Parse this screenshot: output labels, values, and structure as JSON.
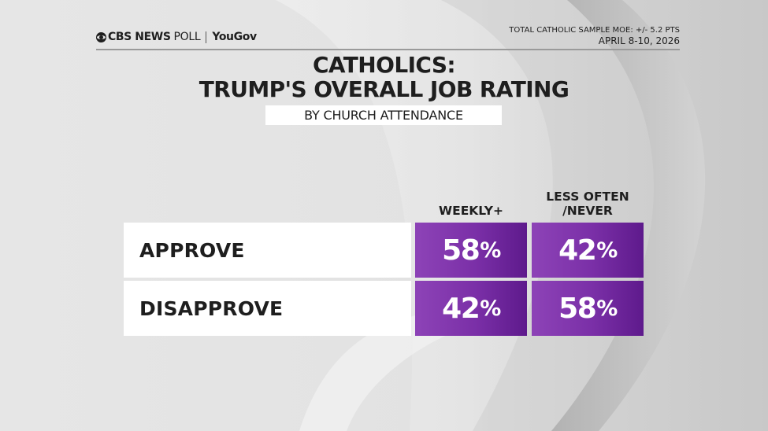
{
  "header": {
    "brand_main": "CBS NEWS",
    "brand_poll": "POLL",
    "brand_partner": "YouGov",
    "moe": "TOTAL CATHOLIC SAMPLE MOE: +/- 5.2 PTS",
    "dates": "APRIL 8-10, 2026"
  },
  "title_line1": "CATHOLICS:",
  "title_line2": "TRUMP'S OVERALL JOB RATING",
  "subtitle": "BY CHURCH ATTENDANCE",
  "chart_data": {
    "type": "table",
    "title": "CATHOLICS: TRUMP'S OVERALL JOB RATING",
    "subtitle": "BY CHURCH ATTENDANCE",
    "columns": [
      {
        "label_line1": "",
        "label_line2": "WEEKLY+",
        "name": "WEEKLY+"
      },
      {
        "label_line1": "LESS OFTEN",
        "label_line2": "/NEVER",
        "name": "LESS OFTEN /NEVER"
      }
    ],
    "rows": [
      {
        "label": "APPROVE",
        "values": [
          58,
          42
        ]
      },
      {
        "label": "DISAPPROVE",
        "values": [
          42,
          58
        ]
      }
    ],
    "unit": "%",
    "colors": {
      "cell": "#7a2fa7",
      "cell_text": "#ffffff",
      "label_bg": "#ffffff"
    }
  }
}
